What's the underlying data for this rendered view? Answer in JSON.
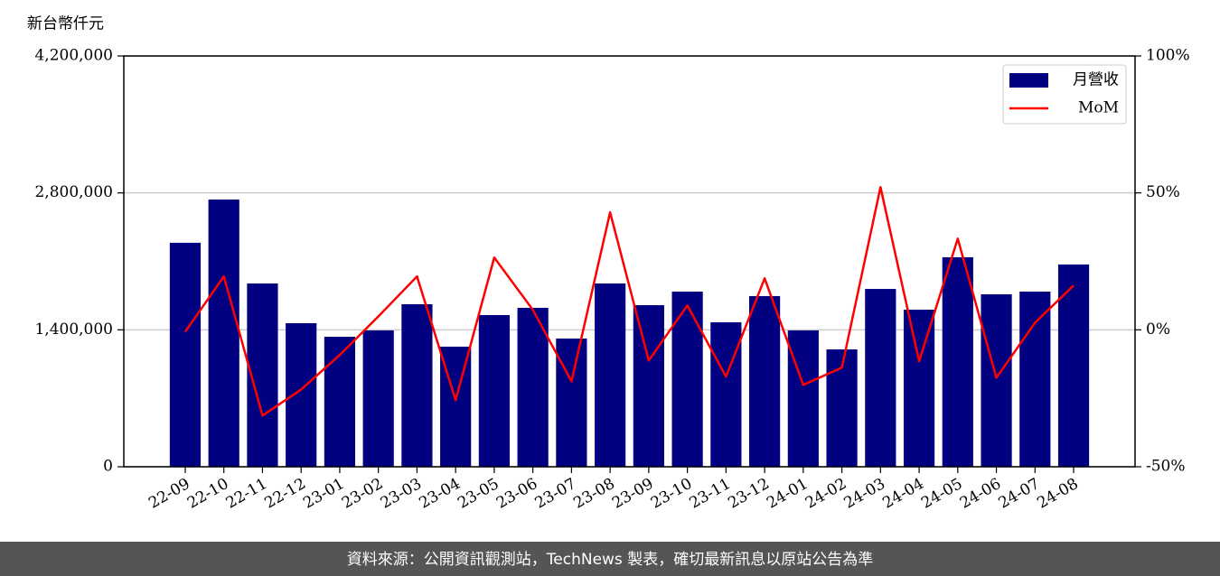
{
  "chart_data": {
    "type": "bar-line",
    "y_label": "新台幣仟元",
    "categories": [
      "22-09",
      "22-10",
      "22-11",
      "22-12",
      "23-01",
      "23-02",
      "23-03",
      "23-04",
      "23-05",
      "23-06",
      "23-07",
      "23-08",
      "23-09",
      "23-10",
      "23-11",
      "23-12",
      "24-01",
      "24-02",
      "24-03",
      "24-04",
      "24-05",
      "24-06",
      "24-07",
      "24-08"
    ],
    "series": [
      {
        "name": "月營收",
        "color": "#000080",
        "type": "bar",
        "values": [
          2290000,
          2732000,
          1874000,
          1468000,
          1329000,
          1394000,
          1662000,
          1228000,
          1551000,
          1625000,
          1311000,
          1874000,
          1652000,
          1791000,
          1477000,
          1745000,
          1394000,
          1200000,
          1818000,
          1606000,
          2142000,
          1763000,
          1791000,
          2068000
        ]
      },
      {
        "name": "MoM",
        "color": "#ff0000",
        "type": "line",
        "axis": "y2",
        "values": [
          -0.7,
          19.5,
          -31.3,
          -21.8,
          -9.2,
          4.9,
          19.5,
          -25.7,
          26.4,
          7.3,
          -18.8,
          42.9,
          -11.2,
          8.9,
          -17.1,
          18.8,
          -20.1,
          -13.8,
          52.1,
          -11.5,
          33.3,
          -17.5,
          2.6,
          16.2
        ]
      }
    ],
    "ylim": [
      0,
      4200000
    ],
    "yticks": [
      0,
      {
        "value": 1400000,
        "label": "1,400,000"
      },
      {
        "value": 2800000,
        "label": "2,800,000"
      },
      {
        "value": 4200000,
        "label": "4,200,000"
      }
    ],
    "y2lim": [
      -50,
      100
    ],
    "y2ticks": [
      {
        "value": -50,
        "label": "-50%"
      },
      {
        "value": 0,
        "label": "0%"
      },
      {
        "value": 50,
        "label": "50%"
      },
      {
        "value": 100,
        "label": "100%"
      }
    ],
    "grid": true,
    "legend": "upper right"
  },
  "footer": "資料來源：公開資訊觀測站，TechNews 製表，確切最新訊息以原站公告為準"
}
